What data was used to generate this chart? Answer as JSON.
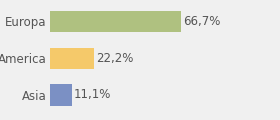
{
  "categories": [
    "Europa",
    "America",
    "Asia"
  ],
  "values": [
    66.7,
    22.2,
    11.1
  ],
  "labels": [
    "66,7%",
    "22,2%",
    "11,1%"
  ],
  "bar_colors": [
    "#afc180",
    "#f5c96a",
    "#7b90c4"
  ],
  "background_color": "#f0f0f0",
  "xlim": [
    0,
    100
  ],
  "bar_height": 0.58,
  "label_fontsize": 8.5,
  "tick_fontsize": 8.5,
  "text_color": "#555555"
}
